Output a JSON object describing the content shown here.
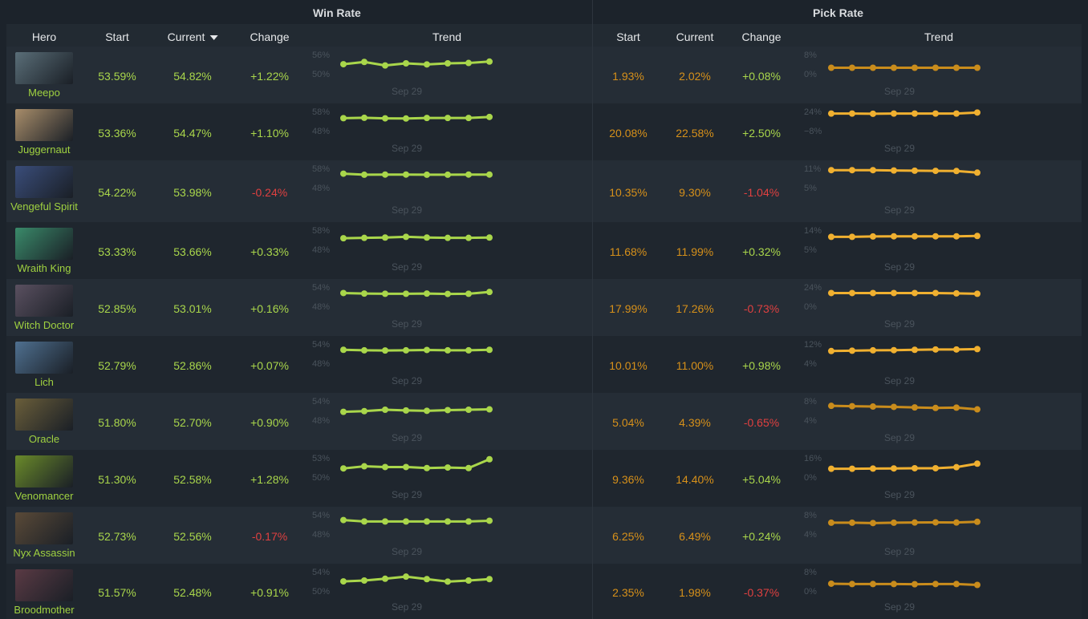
{
  "groups": {
    "win_rate": "Win Rate",
    "pick_rate": "Pick Rate"
  },
  "headers": {
    "hero": "Hero",
    "wr_start": "Start",
    "wr_current": "Current",
    "wr_change": "Change",
    "wr_trend": "Trend",
    "pr_start": "Start",
    "pr_current": "Current",
    "pr_change": "Change",
    "pr_trend": "Trend"
  },
  "colors": {
    "green": "#a9d64b",
    "orange": "#d6901a",
    "red": "#e04040",
    "wr_line": "#a9d64b",
    "pr_line": "#f0b030",
    "pr_line_dim": "#c98c1c"
  },
  "rows": [
    {
      "hero": "Meepo",
      "avatar_color": "#5a6e78",
      "wr_start": "53.59%",
      "wr_current": "54.82%",
      "wr_change": "+1.22%",
      "wr_change_sign": "pos",
      "wr_max": "56%",
      "wr_min": "50%",
      "wr_date": "Sep 29",
      "wr_trend": [
        0.55,
        0.42,
        0.62,
        0.5,
        0.56,
        0.5,
        0.48,
        0.4
      ],
      "pr_start": "1.93%",
      "pr_current": "2.02%",
      "pr_change": "+0.08%",
      "pr_change_sign": "pos",
      "pr_max": "8%",
      "pr_min": "0%",
      "pr_date": "Sep 29",
      "pr_trend": [
        0.75,
        0.75,
        0.75,
        0.75,
        0.75,
        0.75,
        0.75,
        0.75
      ],
      "pr_dim": true
    },
    {
      "hero": "Juggernaut",
      "avatar_color": "#a88d6a",
      "wr_start": "53.36%",
      "wr_current": "54.47%",
      "wr_change": "+1.10%",
      "wr_change_sign": "pos",
      "wr_max": "58%",
      "wr_min": "48%",
      "wr_date": "Sep 29",
      "wr_trend": [
        0.38,
        0.36,
        0.39,
        0.4,
        0.37,
        0.37,
        0.37,
        0.31
      ],
      "pr_start": "20.08%",
      "pr_current": "22.58%",
      "pr_change": "+2.50%",
      "pr_change_sign": "pos",
      "pr_max": "24%",
      "pr_min": "−8%",
      "pr_date": "Sep 29",
      "pr_trend": [
        0.12,
        0.12,
        0.13,
        0.12,
        0.12,
        0.12,
        0.12,
        0.06
      ],
      "pr_dim": false
    },
    {
      "hero": "Vengeful Spirit",
      "avatar_color": "#3a4d7a",
      "wr_start": "54.22%",
      "wr_current": "53.98%",
      "wr_change": "-0.24%",
      "wr_change_sign": "neg",
      "wr_max": "58%",
      "wr_min": "48%",
      "wr_date": "Sep 29",
      "wr_trend": [
        0.3,
        0.36,
        0.35,
        0.35,
        0.36,
        0.36,
        0.35,
        0.35
      ],
      "pr_start": "10.35%",
      "pr_current": "9.30%",
      "pr_change": "-1.04%",
      "pr_change_sign": "neg",
      "pr_max": "11%",
      "pr_min": "5%",
      "pr_date": "Sep 29",
      "pr_trend": [
        0.1,
        0.1,
        0.1,
        0.12,
        0.13,
        0.14,
        0.15,
        0.24
      ],
      "pr_dim": false
    },
    {
      "hero": "Wraith King",
      "avatar_color": "#3a8a6a",
      "wr_start": "53.33%",
      "wr_current": "53.66%",
      "wr_change": "+0.33%",
      "wr_change_sign": "pos",
      "wr_max": "58%",
      "wr_min": "48%",
      "wr_date": "Sep 29",
      "wr_trend": [
        0.46,
        0.44,
        0.42,
        0.38,
        0.42,
        0.44,
        0.44,
        0.42
      ],
      "pr_start": "11.68%",
      "pr_current": "11.99%",
      "pr_change": "+0.32%",
      "pr_change_sign": "pos",
      "pr_max": "14%",
      "pr_min": "5%",
      "pr_date": "Sep 29",
      "pr_trend": [
        0.38,
        0.38,
        0.36,
        0.35,
        0.35,
        0.35,
        0.35,
        0.33
      ],
      "pr_dim": false
    },
    {
      "hero": "Witch Doctor",
      "avatar_color": "#5a5060",
      "wr_start": "52.85%",
      "wr_current": "53.01%",
      "wr_change": "+0.16%",
      "wr_change_sign": "pos",
      "wr_max": "54%",
      "wr_min": "48%",
      "wr_date": "Sep 29",
      "wr_trend": [
        0.34,
        0.37,
        0.38,
        0.38,
        0.37,
        0.39,
        0.38,
        0.28
      ],
      "pr_start": "17.99%",
      "pr_current": "17.26%",
      "pr_change": "-0.73%",
      "pr_change_sign": "neg",
      "pr_max": "24%",
      "pr_min": "0%",
      "pr_date": "Sep 29",
      "pr_trend": [
        0.34,
        0.34,
        0.34,
        0.34,
        0.34,
        0.34,
        0.36,
        0.38
      ],
      "pr_dim": false
    },
    {
      "hero": "Lich",
      "avatar_color": "#4f7090",
      "wr_start": "52.79%",
      "wr_current": "52.86%",
      "wr_change": "+0.07%",
      "wr_change_sign": "pos",
      "wr_max": "54%",
      "wr_min": "48%",
      "wr_date": "Sep 29",
      "wr_trend": [
        0.33,
        0.36,
        0.37,
        0.36,
        0.34,
        0.36,
        0.36,
        0.33
      ],
      "pr_start": "10.01%",
      "pr_current": "11.00%",
      "pr_change": "+0.98%",
      "pr_change_sign": "pos",
      "pr_max": "12%",
      "pr_min": "4%",
      "pr_date": "Sep 29",
      "pr_trend": [
        0.4,
        0.38,
        0.36,
        0.35,
        0.33,
        0.31,
        0.31,
        0.29
      ],
      "pr_dim": false
    },
    {
      "hero": "Oracle",
      "avatar_color": "#6a5e3a",
      "wr_start": "51.80%",
      "wr_current": "52.70%",
      "wr_change": "+0.90%",
      "wr_change_sign": "pos",
      "wr_max": "54%",
      "wr_min": "48%",
      "wr_date": "Sep 29",
      "wr_trend": [
        0.62,
        0.58,
        0.5,
        0.54,
        0.56,
        0.52,
        0.5,
        0.48
      ],
      "pr_start": "5.04%",
      "pr_current": "4.39%",
      "pr_change": "-0.65%",
      "pr_change_sign": "neg",
      "pr_max": "8%",
      "pr_min": "4%",
      "pr_date": "Sep 29",
      "pr_trend": [
        0.28,
        0.3,
        0.32,
        0.34,
        0.37,
        0.4,
        0.38,
        0.48
      ],
      "pr_dim": true
    },
    {
      "hero": "Venomancer",
      "avatar_color": "#6a8a2a",
      "wr_start": "51.30%",
      "wr_current": "52.58%",
      "wr_change": "+1.28%",
      "wr_change_sign": "pos",
      "wr_max": "53%",
      "wr_min": "50%",
      "wr_date": "Sep 29",
      "wr_trend": [
        0.6,
        0.48,
        0.52,
        0.52,
        0.58,
        0.55,
        0.58,
        0.08
      ],
      "pr_start": "9.36%",
      "pr_current": "14.40%",
      "pr_change": "+5.04%",
      "pr_change_sign": "pos",
      "pr_max": "16%",
      "pr_min": "0%",
      "pr_date": "Sep 29",
      "pr_trend": [
        0.62,
        0.62,
        0.61,
        0.6,
        0.59,
        0.59,
        0.53,
        0.33
      ],
      "pr_dim": false
    },
    {
      "hero": "Nyx Assassin",
      "avatar_color": "#5a4a38",
      "wr_start": "52.73%",
      "wr_current": "52.56%",
      "wr_change": "-0.17%",
      "wr_change_sign": "neg",
      "wr_max": "54%",
      "wr_min": "48%",
      "wr_date": "Sep 29",
      "wr_trend": [
        0.3,
        0.38,
        0.38,
        0.38,
        0.38,
        0.38,
        0.38,
        0.34
      ],
      "pr_start": "6.25%",
      "pr_current": "6.49%",
      "pr_change": "+0.24%",
      "pr_change_sign": "pos",
      "pr_max": "8%",
      "pr_min": "4%",
      "pr_date": "Sep 29",
      "pr_trend": [
        0.45,
        0.45,
        0.47,
        0.45,
        0.44,
        0.43,
        0.44,
        0.4
      ],
      "pr_dim": true
    },
    {
      "hero": "Broodmother",
      "avatar_color": "#5a3a44",
      "wr_start": "51.57%",
      "wr_current": "52.48%",
      "wr_change": "+0.91%",
      "wr_change_sign": "pos",
      "wr_max": "54%",
      "wr_min": "50%",
      "wr_date": "Sep 29",
      "wr_trend": [
        0.55,
        0.5,
        0.4,
        0.28,
        0.42,
        0.56,
        0.5,
        0.42
      ],
      "pr_start": "2.35%",
      "pr_current": "1.98%",
      "pr_change": "-0.37%",
      "pr_change_sign": "neg",
      "pr_max": "8%",
      "pr_min": "0%",
      "pr_date": "Sep 29",
      "pr_trend": [
        0.68,
        0.7,
        0.7,
        0.7,
        0.71,
        0.7,
        0.7,
        0.75
      ],
      "pr_dim": true
    }
  ]
}
